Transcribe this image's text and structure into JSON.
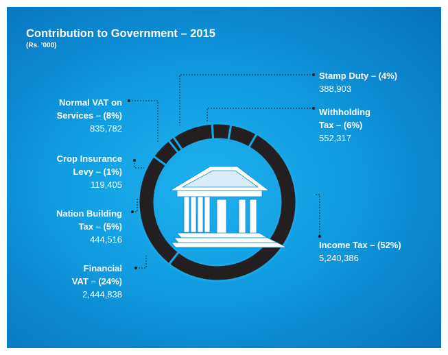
{
  "chart_data": {
    "type": "pie",
    "style": "donut",
    "title": "Contribution to Government – 2015",
    "subtitle": "(Rs. ’000)",
    "slices": [
      {
        "key": "stamp",
        "label_lines": [
          "Stamp Duty – (4%)"
        ],
        "value_text": "388,903",
        "value": 388903,
        "percent": 4
      },
      {
        "key": "withholding",
        "label_lines": [
          "Withholding",
          "Tax – (6%)"
        ],
        "value_text": "552,317",
        "value": 552317,
        "percent": 6
      },
      {
        "key": "income",
        "label_lines": [
          "Income Tax – (52%)"
        ],
        "value_text": "5,240,386",
        "value": 5240386,
        "percent": 52
      },
      {
        "key": "financial",
        "label_lines": [
          "Financial",
          "VAT – (24%)"
        ],
        "value_text": "2,444,838",
        "value": 2444838,
        "percent": 24
      },
      {
        "key": "nbt",
        "label_lines": [
          "Nation Building",
          "Tax – (5%)"
        ],
        "value_text": "444,516",
        "value": 444516,
        "percent": 5
      },
      {
        "key": "crop",
        "label_lines": [
          "Crop Insurance",
          "Levy – (1%)"
        ],
        "value_text": "119,405",
        "value": 119405,
        "percent": 1
      },
      {
        "key": "vat_services",
        "label_lines": [
          "Normal VAT on",
          "Services – (8%)"
        ],
        "value_text": "835,782",
        "value": 835782,
        "percent": 8
      }
    ]
  },
  "colors": {
    "ring": "#231f20",
    "separator": "#1aa7e8",
    "leader": "#1a1a1a",
    "text": "#ffffff"
  },
  "center_icon": "bank-building-icon"
}
